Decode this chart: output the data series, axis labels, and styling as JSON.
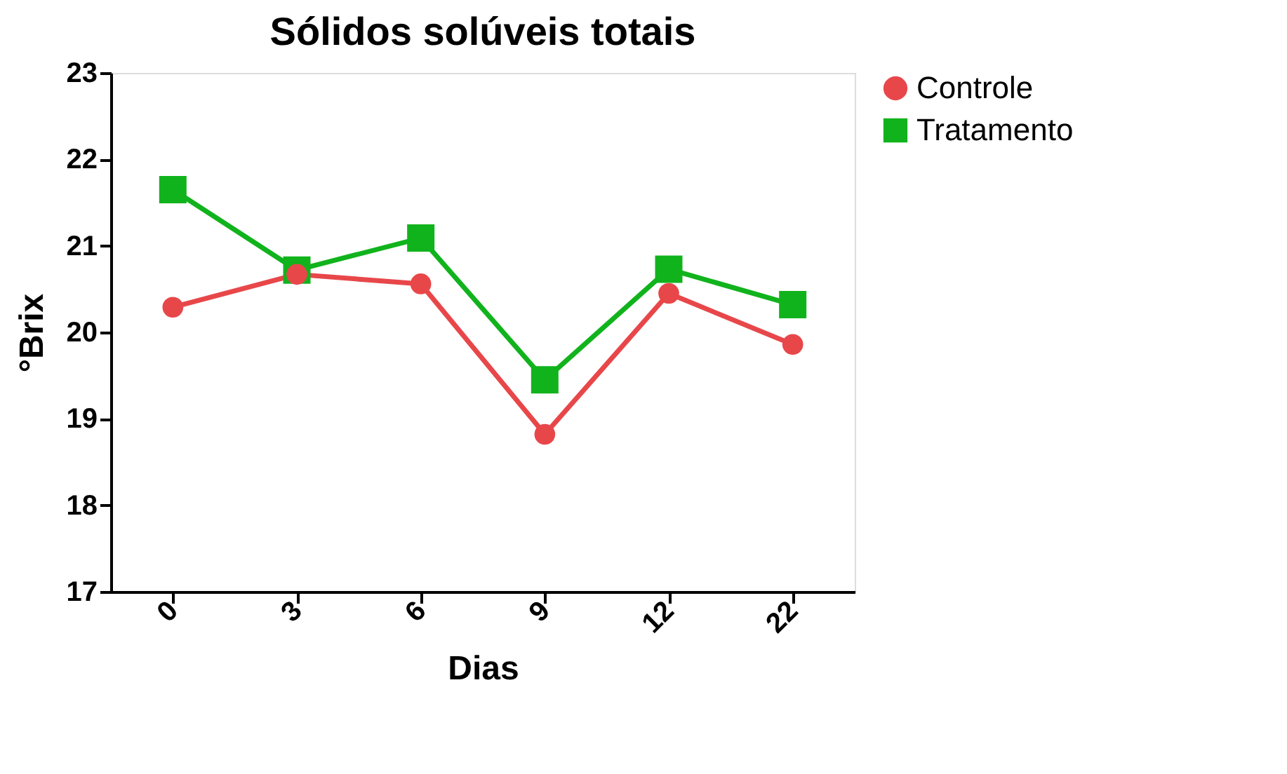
{
  "chart_data": {
    "type": "line",
    "title": "Sólidos solúveis totais",
    "xlabel": "Dias",
    "ylabel": "°Brix",
    "categories": [
      "0",
      "3",
      "6",
      "9",
      "12",
      "22"
    ],
    "series": [
      {
        "name": "Controle",
        "color": "#e8474a",
        "marker": "circle",
        "values": [
          20.29,
          20.67,
          20.56,
          18.82,
          20.45,
          19.86
        ]
      },
      {
        "name": "Tratamento",
        "color": "#11b31c",
        "marker": "square",
        "values": [
          21.65,
          20.72,
          21.09,
          19.45,
          20.73,
          20.32
        ]
      }
    ],
    "ylim": [
      17,
      23
    ],
    "yticks": [
      17,
      18,
      19,
      20,
      21,
      22,
      23
    ],
    "grid": false,
    "legend": "top right"
  }
}
